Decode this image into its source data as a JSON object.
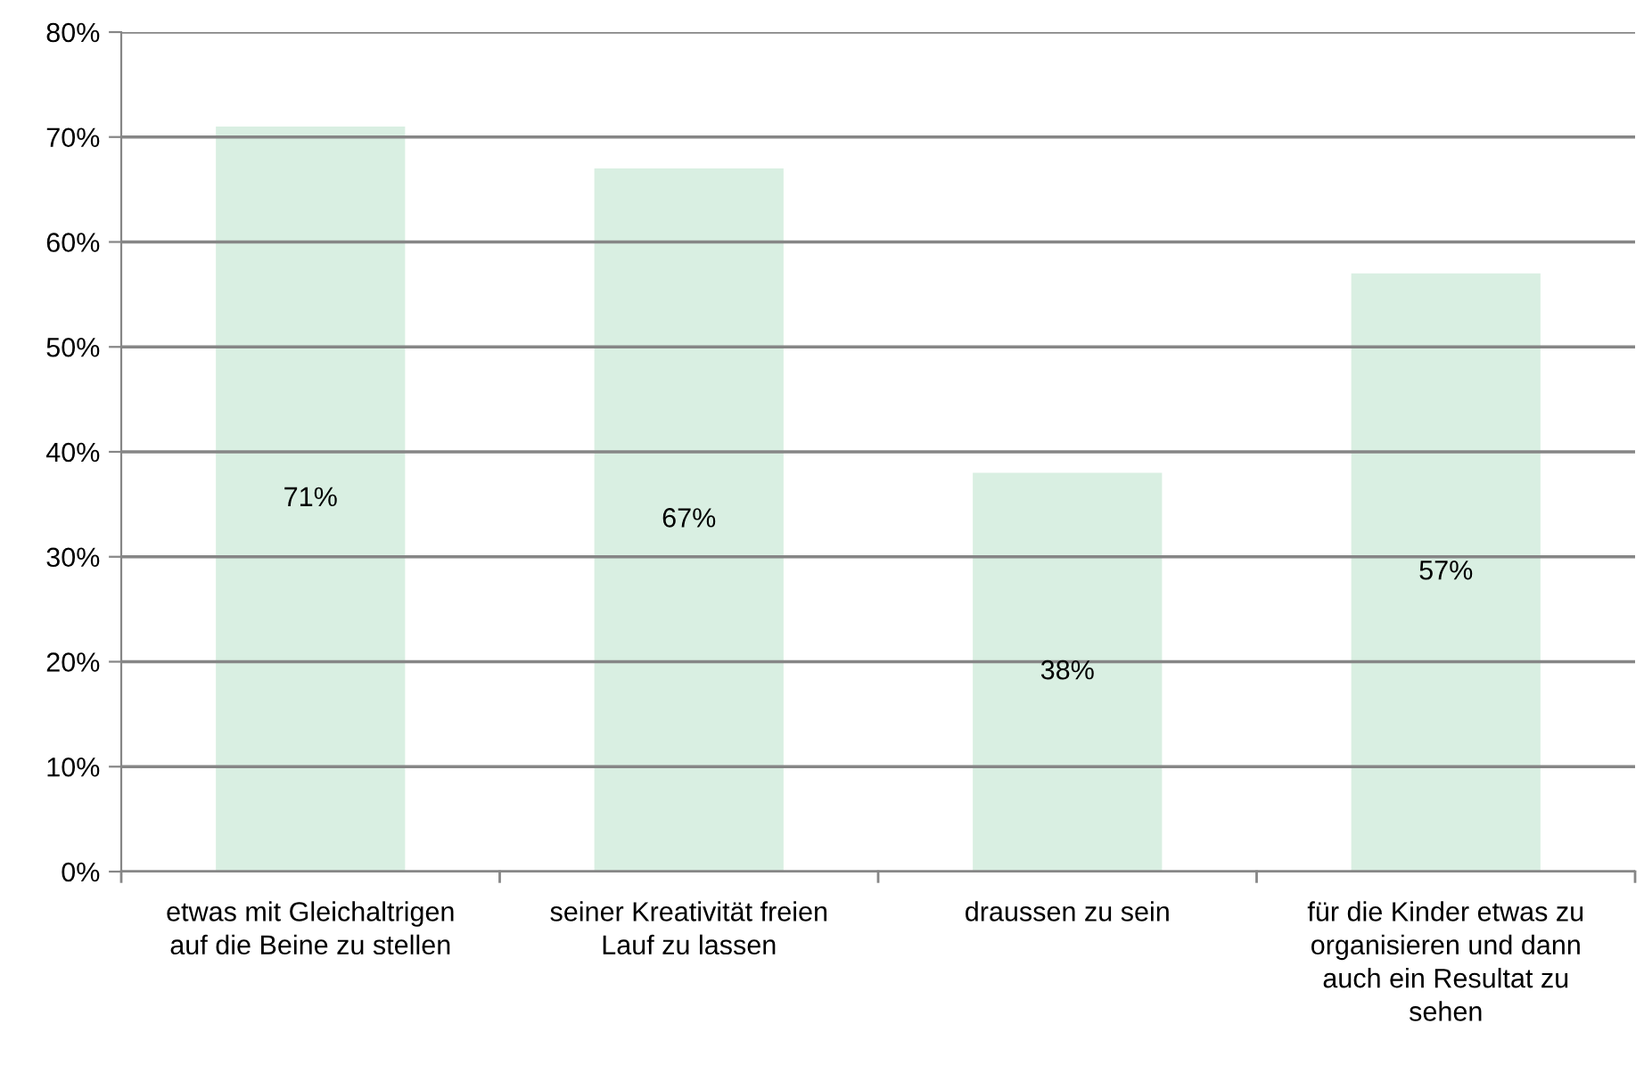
{
  "chart_data": {
    "type": "bar",
    "categories": [
      "etwas mit Gleichaltrigen\nauf die Beine zu stellen",
      "seiner Kreativität freien\nLauf zu lassen",
      "draussen zu sein",
      "für die Kinder etwas zu\norganisieren und dann\nauch ein Resultat zu\nsehen"
    ],
    "values": [
      71,
      67,
      38,
      57
    ],
    "value_labels": [
      "71%",
      "67%",
      "38%",
      "57%"
    ],
    "color": "#d9efe2",
    "ylim": [
      0,
      80
    ],
    "yticks": [
      {
        "value": 0,
        "label": "0%"
      },
      {
        "value": 10,
        "label": "10%"
      },
      {
        "value": 20,
        "label": "20%"
      },
      {
        "value": 30,
        "label": "30%"
      },
      {
        "value": 40,
        "label": "40%"
      },
      {
        "value": 50,
        "label": "50%"
      },
      {
        "value": 60,
        "label": "60%"
      },
      {
        "value": 70,
        "label": "70%"
      },
      {
        "value": 80,
        "label": "80%"
      }
    ],
    "grid": "y"
  }
}
